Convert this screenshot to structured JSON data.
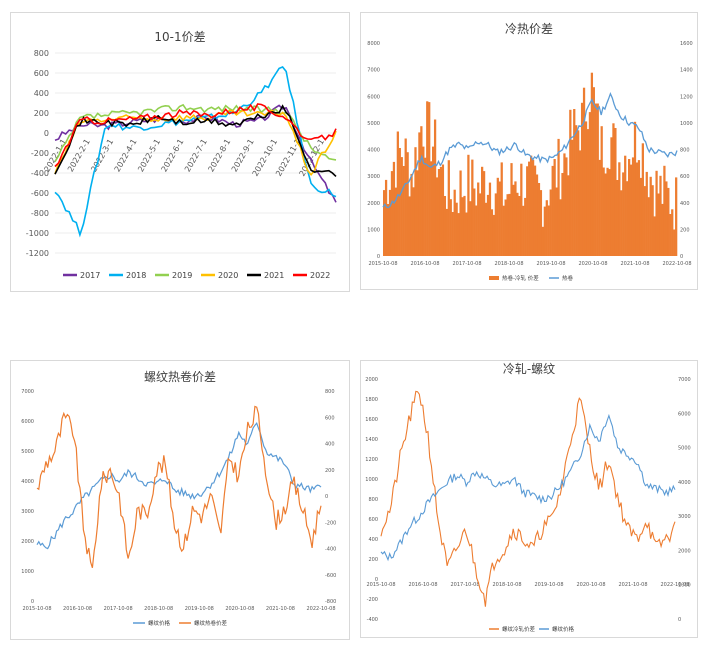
{
  "chart_data": [
    {
      "type": "line",
      "title": "10-1价差",
      "ylim": [
        -1200,
        800
      ],
      "yticks": [
        "800",
        "600",
        "400",
        "200",
        "0",
        "-200",
        "-400",
        "-600",
        "-800",
        "-1000",
        "-1200"
      ],
      "categories": [
        "2022-1-1",
        "2022-2-1",
        "2022-3-1",
        "2022-4-1",
        "2022-5-1",
        "2022-6-1",
        "2022-7-1",
        "2022-8-1",
        "2022-9-1",
        "2022-10-1",
        "2022-11-1",
        "2022-12-1"
      ],
      "legend_position": "bottom",
      "series": [
        {
          "name": "2017",
          "color": "#7030A0",
          "values": [
            -60,
            80,
            70,
            110,
            140,
            120,
            160,
            90,
            120,
            280,
            -280,
            -700
          ]
        },
        {
          "name": "2018",
          "color": "#00B0F0",
          "values": [
            -560,
            -1000,
            90,
            50,
            80,
            120,
            150,
            200,
            380,
            680,
            -520,
            -620
          ]
        },
        {
          "name": "2019",
          "color": "#92D050",
          "values": [
            -300,
            150,
            180,
            200,
            230,
            260,
            240,
            250,
            230,
            230,
            -150,
            -300
          ]
        },
        {
          "name": "2020",
          "color": "#FFC000",
          "values": [
            -400,
            120,
            130,
            150,
            140,
            160,
            150,
            200,
            180,
            210,
            -420,
            10
          ]
        },
        {
          "name": "2021",
          "color": "#000000",
          "values": [
            -380,
            120,
            110,
            80,
            160,
            100,
            120,
            80,
            160,
            250,
            -350,
            -420
          ]
        },
        {
          "name": "2022",
          "color": "#FF0000",
          "values": [
            -350,
            130,
            120,
            140,
            170,
            200,
            180,
            230,
            260,
            170,
            -100,
            10
          ]
        }
      ]
    },
    {
      "type": "bar",
      "title": "冷热价差",
      "left_ticks": [
        "8000",
        "7000",
        "6000",
        "5000",
        "4000",
        "3000",
        "2000",
        "1000",
        "0"
      ],
      "right_ticks": [
        "1600",
        "1400",
        "1200",
        "1000",
        "800",
        "600",
        "400",
        "200",
        "0"
      ],
      "x_labels": [
        "2015-10-08",
        "2016-10-08",
        "2017-10-08",
        "2018-10-08",
        "2019-10-08",
        "2020-10-08",
        "2021-10-08",
        "2022-10-08"
      ],
      "series": [
        {
          "name": "热卷-冷轧 价差",
          "color": "#ED7D31",
          "axis": "right",
          "values": [
            500,
            700,
            800,
            600,
            1000,
            900,
            650,
            450,
            500,
            550,
            500,
            600,
            500,
            450,
            600,
            550,
            500,
            450,
            600,
            700,
            900,
            1000,
            1300,
            800,
            900,
            700,
            800,
            900,
            650,
            500,
            450,
            400
          ]
        },
        {
          "name": "热卷",
          "color": "#5B9BD5",
          "axis": "left",
          "values": [
            1800,
            2000,
            2400,
            3000,
            3700,
            3300,
            3500,
            4000,
            4200,
            4000,
            4300,
            4200,
            3900,
            4000,
            4200,
            3800,
            3700,
            3600,
            3700,
            4000,
            4500,
            5000,
            5800,
            5400,
            6000,
            5300,
            5000,
            4800,
            4000,
            3900,
            3800,
            3900
          ]
        }
      ]
    },
    {
      "type": "line",
      "title": "螺纹热卷价差",
      "left_ticks": [
        "7000",
        "6000",
        "5000",
        "4000",
        "3000",
        "2000",
        "1000",
        "0"
      ],
      "right_ticks": [
        "800",
        "600",
        "400",
        "200",
        "0",
        "-200",
        "-400",
        "-600",
        "-800"
      ],
      "x_labels": [
        "2015-10-08",
        "2016-10-08",
        "2017-10-08",
        "2018-10-08",
        "2019-10-08",
        "2020-10-08",
        "2021-10-08",
        "2022-10-08"
      ],
      "series": [
        {
          "name": "螺纹价格",
          "color": "#5B9BD5",
          "axis": "left",
          "values": [
            1900,
            1800,
            2200,
            2700,
            3000,
            3400,
            3700,
            4000,
            4200,
            4000,
            4300,
            4100,
            3900,
            3900,
            4100,
            3700,
            3600,
            3500,
            3600,
            3900,
            4300,
            4800,
            5600,
            5200,
            6000,
            5000,
            4800,
            4600,
            3900,
            3800,
            3700,
            3800
          ]
        },
        {
          "name": "螺纹热卷价差",
          "color": "#ED7D31",
          "axis": "right",
          "values": [
            50,
            250,
            350,
            600,
            500,
            -200,
            -600,
            100,
            200,
            0,
            -500,
            -100,
            -150,
            200,
            250,
            -200,
            -400,
            -100,
            -150,
            0,
            -300,
            300,
            150,
            500,
            650,
            200,
            -200,
            -100,
            100,
            -100,
            -350,
            -50
          ]
        }
      ]
    },
    {
      "type": "line",
      "title": "冷轧-螺纹",
      "left_ticks": [
        "2000",
        "1800",
        "1600",
        "1400",
        "1200",
        "1000",
        "800",
        "600",
        "400",
        "200",
        "0",
        "-200",
        "-400"
      ],
      "right_ticks": [
        "7000",
        "6000",
        "5000",
        "4000",
        "3000",
        "2000",
        "1000",
        "0"
      ],
      "x_labels": [
        "2015-10-08",
        "2016-10-08",
        "2017-10-08",
        "2018-10-08",
        "2019-10-08",
        "2020-10-08",
        "2021-10-08",
        "2022-10-08"
      ],
      "series": [
        {
          "name": "螺纹冷轧价差",
          "color": "#ED7D31",
          "axis": "left",
          "values": [
            500,
            700,
            1200,
            1600,
            1900,
            1400,
            600,
            100,
            300,
            500,
            100,
            -200,
            200,
            300,
            500,
            400,
            300,
            500,
            600,
            900,
            1400,
            1800,
            1300,
            900,
            1200,
            800,
            500,
            400,
            600,
            300,
            400,
            500
          ]
        },
        {
          "name": "螺纹价格",
          "color": "#5B9BD5",
          "axis": "right",
          "values": [
            1900,
            1800,
            2200,
            2700,
            3000,
            3400,
            3700,
            4000,
            4200,
            4000,
            4300,
            4100,
            3900,
            3900,
            4100,
            3700,
            3600,
            3500,
            3600,
            3900,
            4300,
            4800,
            5600,
            5200,
            6000,
            5000,
            4800,
            4600,
            3900,
            3800,
            3700,
            3800
          ]
        }
      ]
    }
  ]
}
